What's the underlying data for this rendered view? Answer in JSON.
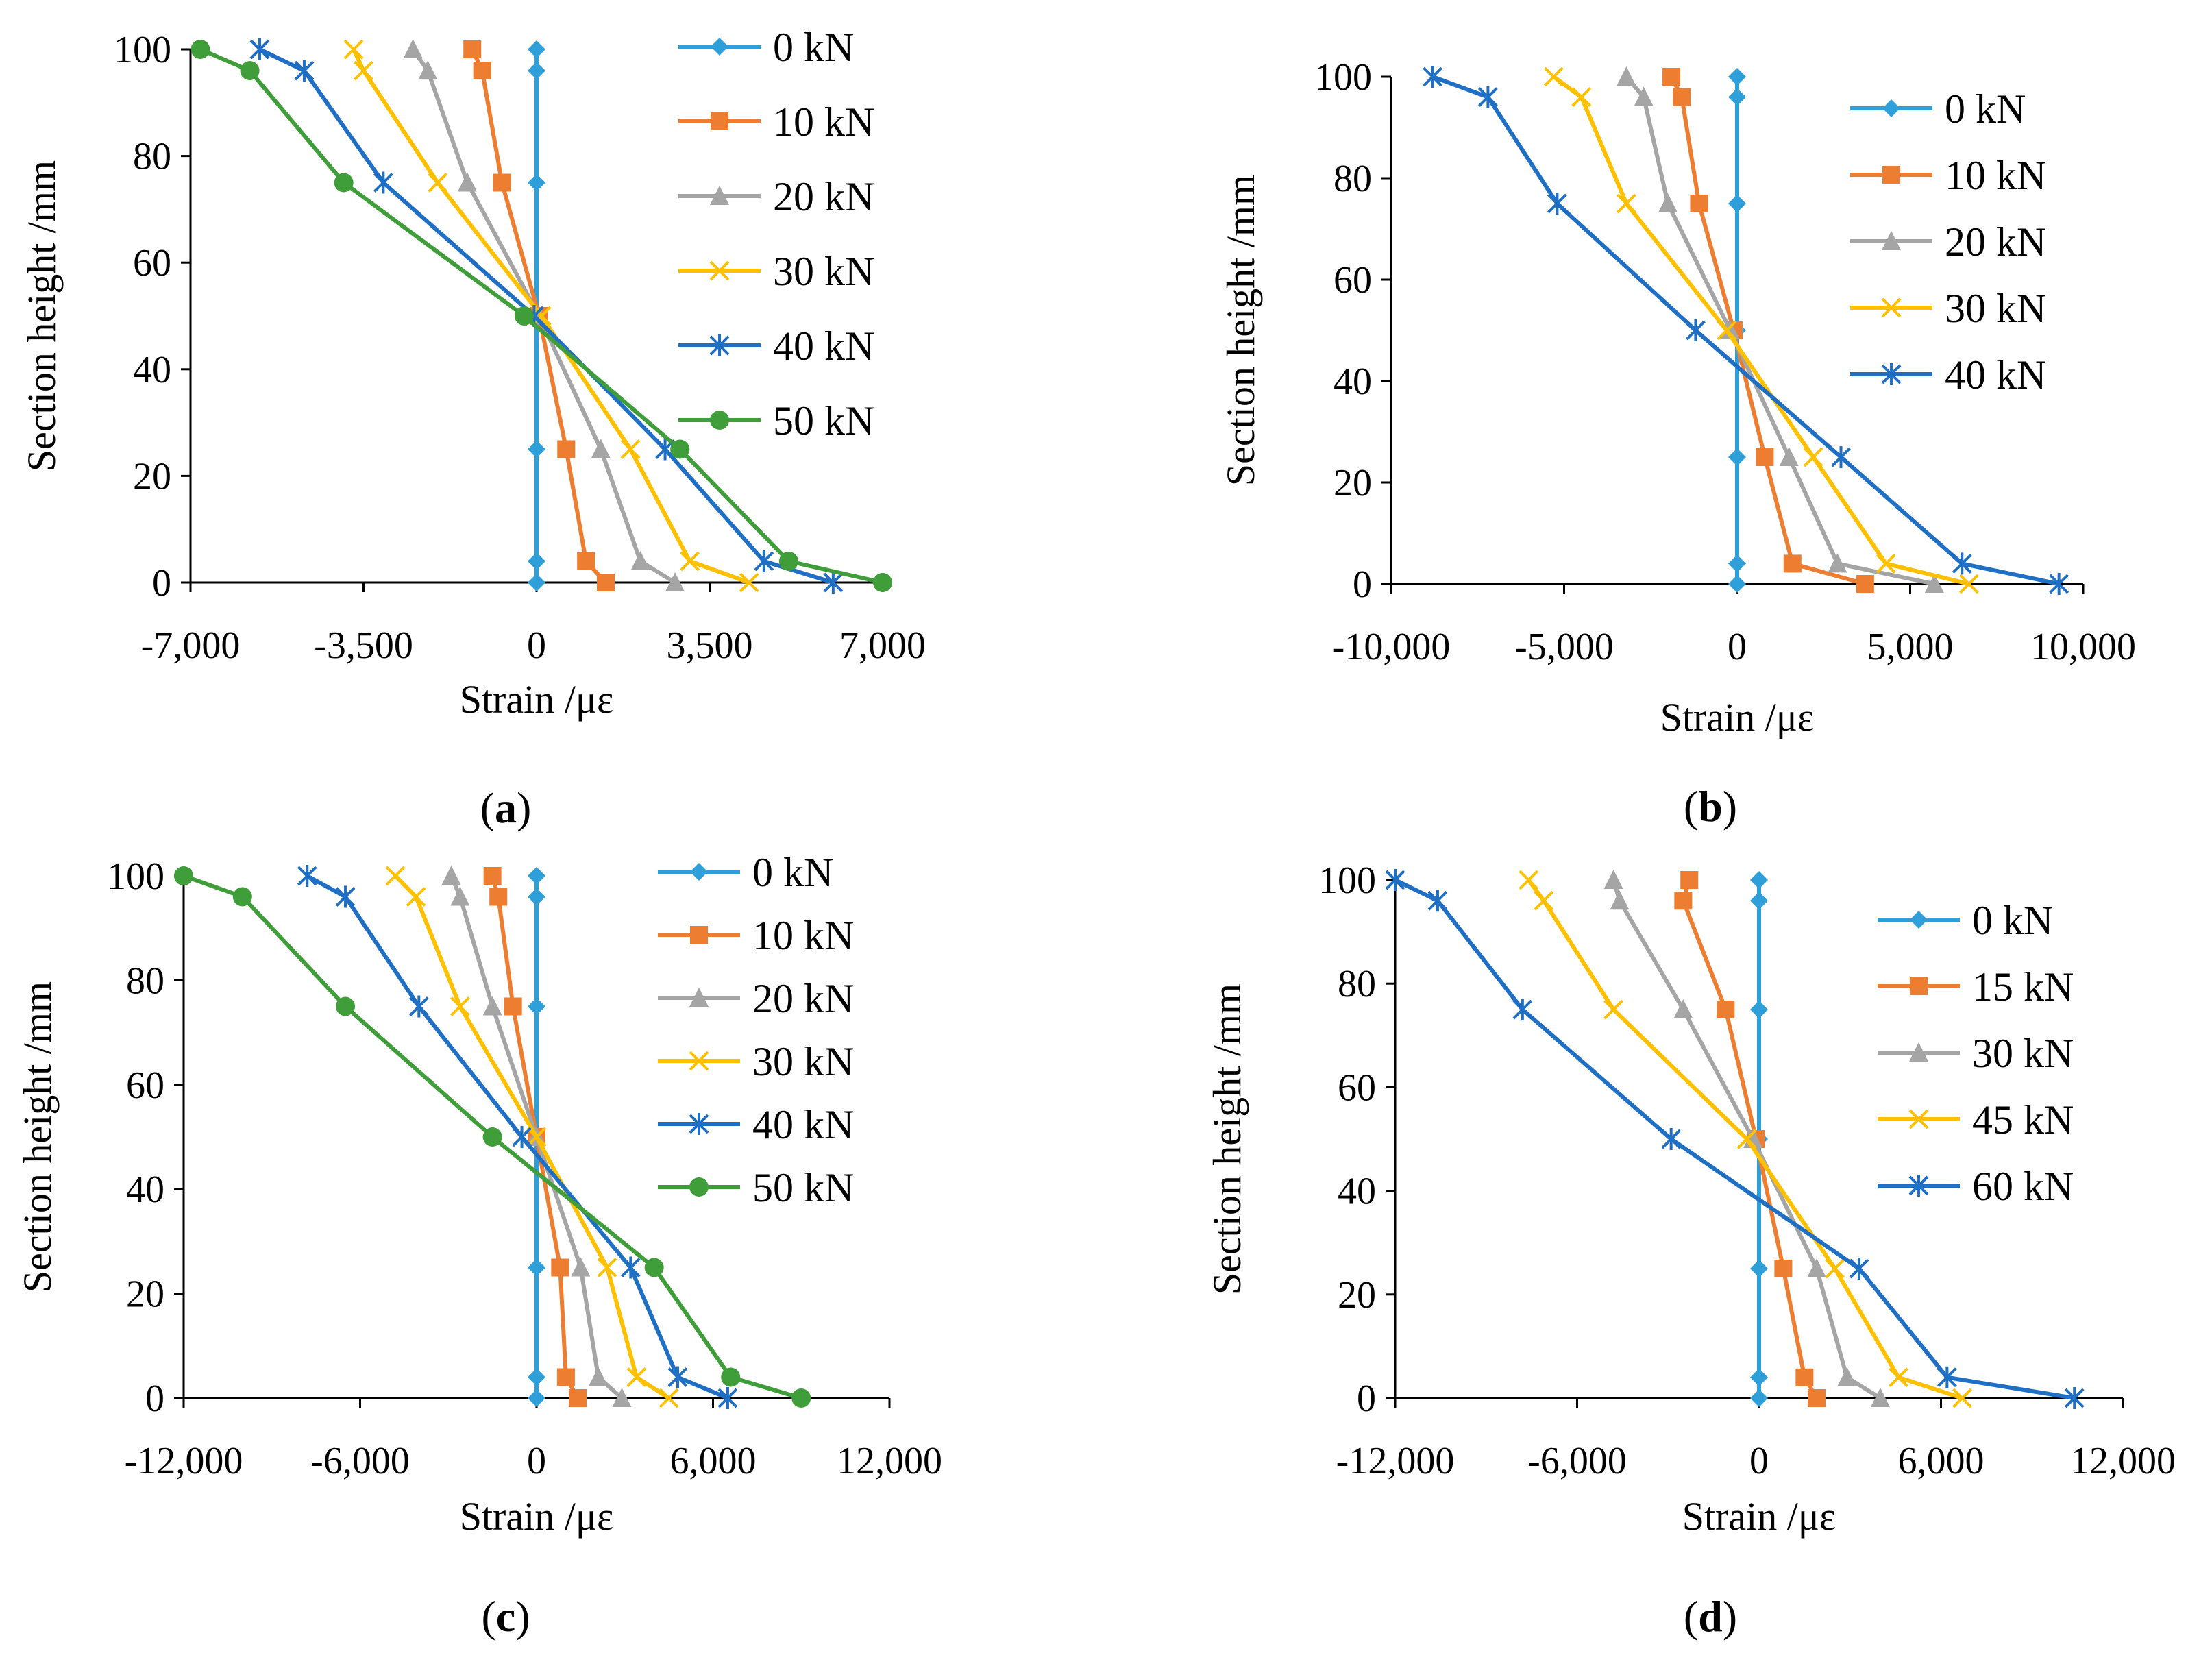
{
  "colors": {
    "series": [
      "#2e9fd8",
      "#ed7d31",
      "#a5a5a5",
      "#ffc000",
      "#1f6fc5",
      "#3f9d3a"
    ],
    "axis": "#000000"
  },
  "chart_data": [
    {
      "type": "line",
      "panel": "a",
      "caption": "(a)",
      "caption_letter": "a",
      "xlabel": "Strain /με",
      "ylabel": "Section height /mm",
      "xlim": [
        -7000,
        7000
      ],
      "ylim": [
        0,
        100
      ],
      "xticks": [
        -7000,
        -3500,
        0,
        3500,
        7000
      ],
      "xtick_labels": [
        "-7,000",
        "-3,500",
        "0",
        "3,500",
        "7,000"
      ],
      "yticks": [
        0,
        20,
        40,
        60,
        80,
        100
      ],
      "ytick_labels": [
        "0",
        "20",
        "40",
        "60",
        "80",
        "100"
      ],
      "y": [
        0,
        4,
        25,
        50,
        75,
        96,
        100
      ],
      "legend_position": "top-right",
      "series": [
        {
          "name": "0 kN",
          "marker": "diamond",
          "x": [
            0,
            0,
            0,
            0,
            0,
            0,
            0
          ]
        },
        {
          "name": "10 kN",
          "marker": "square",
          "x": [
            1400,
            1000,
            600,
            50,
            -700,
            -1100,
            -1300
          ]
        },
        {
          "name": "20 kN",
          "marker": "triangle",
          "x": [
            2800,
            2100,
            1300,
            50,
            -1400,
            -2200,
            -2500
          ]
        },
        {
          "name": "30 kN",
          "marker": "x",
          "x": [
            4300,
            3100,
            1900,
            100,
            -2000,
            -3500,
            -3700
          ]
        },
        {
          "name": "40 kN",
          "marker": "star",
          "x": [
            6000,
            4600,
            2600,
            -50,
            -3100,
            -4700,
            -5600
          ]
        },
        {
          "name": "50 kN",
          "marker": "circle",
          "x": [
            7000,
            5100,
            2900,
            -250,
            -3900,
            -5800,
            -6800
          ]
        }
      ]
    },
    {
      "type": "line",
      "panel": "b",
      "caption": "(b)",
      "caption_letter": "b",
      "xlabel": "Strain /με",
      "ylabel": "Section height /mm",
      "xlim": [
        -10000,
        10000
      ],
      "ylim": [
        0,
        100
      ],
      "xticks": [
        -10000,
        -5000,
        0,
        5000,
        10000
      ],
      "xtick_labels": [
        "-10,000",
        "-5,000",
        "0",
        "5,000",
        "10,000"
      ],
      "yticks": [
        0,
        20,
        40,
        60,
        80,
        100
      ],
      "ytick_labels": [
        "0",
        "20",
        "40",
        "60",
        "80",
        "100"
      ],
      "y": [
        0,
        4,
        25,
        50,
        75,
        96,
        100
      ],
      "legend_position": "top-right",
      "series": [
        {
          "name": "0 kN",
          "marker": "diamond",
          "x": [
            0,
            0,
            0,
            0,
            0,
            0,
            0
          ]
        },
        {
          "name": "10 kN",
          "marker": "square",
          "x": [
            3700,
            1600,
            800,
            -100,
            -1100,
            -1600,
            -1900
          ]
        },
        {
          "name": "20 kN",
          "marker": "triangle",
          "x": [
            5700,
            2900,
            1500,
            -200,
            -2000,
            -2700,
            -3200
          ]
        },
        {
          "name": "30 kN",
          "marker": "x",
          "x": [
            6700,
            4300,
            2200,
            -300,
            -3200,
            -4500,
            -5300
          ]
        },
        {
          "name": "40 kN",
          "marker": "star",
          "x": [
            9300,
            6500,
            3000,
            -1200,
            -5200,
            -7200,
            -8800
          ]
        }
      ]
    },
    {
      "type": "line",
      "panel": "c",
      "caption": "(c)",
      "caption_letter": "c",
      "xlabel": "Strain /με",
      "ylabel": "Section height /mm",
      "xlim": [
        -12000,
        12000
      ],
      "ylim": [
        0,
        100
      ],
      "xticks": [
        -12000,
        -6000,
        0,
        6000,
        12000
      ],
      "xtick_labels": [
        "-12,000",
        "-6,000",
        "0",
        "6,000",
        "12,000"
      ],
      "yticks": [
        0,
        20,
        40,
        60,
        80,
        100
      ],
      "ytick_labels": [
        "0",
        "20",
        "40",
        "60",
        "80",
        "100"
      ],
      "y": [
        0,
        4,
        25,
        50,
        75,
        96,
        100
      ],
      "legend_position": "top-right",
      "series": [
        {
          "name": "0 kN",
          "marker": "diamond",
          "x": [
            0,
            0,
            0,
            0,
            0,
            0,
            0
          ]
        },
        {
          "name": "10 kN",
          "marker": "square",
          "x": [
            1400,
            1000,
            800,
            0,
            -800,
            -1300,
            -1500
          ]
        },
        {
          "name": "20 kN",
          "marker": "triangle",
          "x": [
            2900,
            2100,
            1500,
            0,
            -1500,
            -2600,
            -2900
          ]
        },
        {
          "name": "30 kN",
          "marker": "x",
          "x": [
            4500,
            3400,
            2400,
            0,
            -2600,
            -4100,
            -4800
          ]
        },
        {
          "name": "40 kN",
          "marker": "star",
          "x": [
            6500,
            4800,
            3200,
            -500,
            -4000,
            -6500,
            -7800
          ]
        },
        {
          "name": "50 kN",
          "marker": "circle",
          "x": [
            9000,
            6600,
            4000,
            -1500,
            -6500,
            -10000,
            -12000
          ]
        }
      ]
    },
    {
      "type": "line",
      "panel": "d",
      "caption": "(d)",
      "caption_letter": "d",
      "xlabel": "Strain /με",
      "ylabel": "Section height /mm",
      "xlim": [
        -12000,
        12000
      ],
      "ylim": [
        0,
        100
      ],
      "xticks": [
        -12000,
        -6000,
        0,
        6000,
        12000
      ],
      "xtick_labels": [
        "-12,000",
        "-6,000",
        "0",
        "6,000",
        "12,000"
      ],
      "yticks": [
        0,
        20,
        40,
        60,
        80,
        100
      ],
      "ytick_labels": [
        "0",
        "20",
        "40",
        "60",
        "80",
        "100"
      ],
      "y": [
        0,
        4,
        25,
        50,
        75,
        96,
        100
      ],
      "legend_position": "top-right",
      "series": [
        {
          "name": "0 kN",
          "marker": "diamond",
          "x": [
            0,
            0,
            0,
            0,
            0,
            0,
            0
          ]
        },
        {
          "name": "15 kN",
          "marker": "square",
          "x": [
            1900,
            1500,
            800,
            -100,
            -1100,
            -2500,
            -2300
          ]
        },
        {
          "name": "30 kN",
          "marker": "triangle",
          "x": [
            4000,
            2900,
            1900,
            -200,
            -2500,
            -4600,
            -4800
          ]
        },
        {
          "name": "45 kN",
          "marker": "x",
          "x": [
            6700,
            4600,
            2500,
            -400,
            -4800,
            -7100,
            -7600
          ]
        },
        {
          "name": "60 kN",
          "marker": "star",
          "x": [
            10400,
            6200,
            3300,
            -2900,
            -7800,
            -10600,
            -12000
          ]
        }
      ]
    }
  ]
}
